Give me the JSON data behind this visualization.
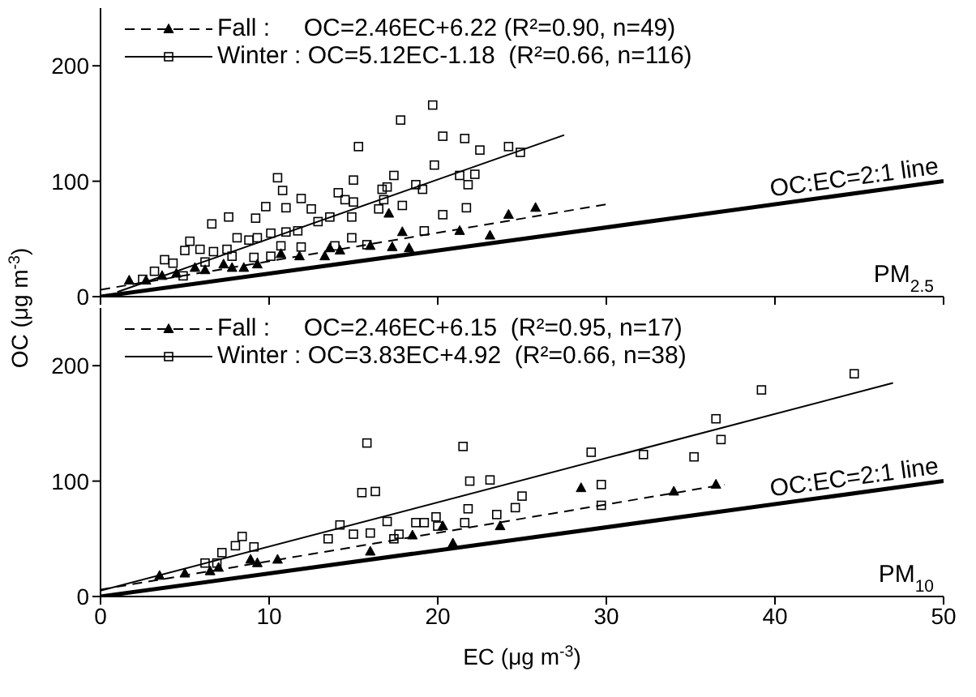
{
  "chart_data": [
    {
      "type": "scatter",
      "ylabel": "OC (μg m$^{-3}$)",
      "xlim": [
        0,
        50
      ],
      "xticks": [
        0,
        10,
        20,
        30,
        40,
        50
      ],
      "ylim": [
        0,
        250
      ],
      "yticks": [
        0,
        100,
        200
      ],
      "tick_labels": "y",
      "legend": "top left",
      "annotations": [
        "PM$_{2.5}$"
      ],
      "series": [
        {
          "type": "scatter",
          "name": "Fall :     OC=2.46EC+6.22 (R²=0.90, n=49)",
          "color": "#000000",
          "marker": "triangle",
          "x": [
            1.7,
            2.7,
            3.65,
            4.5,
            5.6,
            6.2,
            7.3,
            7.8,
            8.5,
            9.3,
            10.7,
            11.8,
            13.3,
            13.6,
            14.2,
            16.0,
            17.1,
            17.3,
            17.9,
            18.3,
            21.3,
            23.1,
            24.2,
            25.8
          ],
          "values": [
            14,
            14,
            18,
            20,
            25,
            23,
            28,
            25,
            25,
            28,
            37,
            35,
            35,
            42,
            40,
            44,
            72,
            43,
            56,
            42,
            57,
            53,
            71,
            77
          ]
        },
        {
          "type": "line",
          "color": "#000000",
          "line_style": "dashed",
          "marker": "none",
          "x": [
            0,
            30
          ],
          "values": [
            6,
            80
          ]
        },
        {
          "type": "scatter",
          "name": "Winter : OC=5.12EC-1.18  (R²=0.66, n=116)",
          "color": "#000000",
          "marker": "square",
          "x": [
            19.7,
            17.8,
            15.3,
            20.3,
            21.6,
            22.5,
            24.2,
            24.9,
            19.8,
            21.3,
            22.2,
            21.8,
            17.4,
            18.7,
            19.1,
            16.7,
            17.0,
            15.0,
            16.8,
            16.5,
            17.9,
            21.7,
            20.3,
            19.2,
            10.5,
            10.8,
            9.8,
            11.0,
            11.9,
            12.5,
            14.1,
            14.5,
            15.0,
            14.9,
            13.6,
            12.9,
            7.6,
            6.6,
            9.2,
            5.3,
            5.0,
            5.9,
            6.7,
            7.5,
            8.1,
            8.8,
            9.3,
            10.1,
            11.0,
            11.7,
            10.7,
            11.9,
            3.8,
            4.3,
            3.2,
            6.2,
            7.8,
            9.1,
            10.1,
            13.9,
            14.9,
            15.8,
            4.9,
            2.5
          ],
          "values": [
            166,
            153,
            130,
            139,
            137,
            127,
            130,
            125,
            114,
            105,
            106,
            97,
            105,
            97,
            93,
            93,
            95,
            101,
            84,
            76,
            79,
            77,
            71,
            57,
            103,
            92,
            78,
            77,
            85,
            76,
            90,
            84,
            82,
            69,
            69,
            65,
            69,
            63,
            68,
            48,
            40,
            41,
            39,
            41,
            51,
            49,
            51,
            55,
            56,
            57,
            44,
            43,
            32,
            29,
            22,
            30,
            35,
            34,
            35,
            44,
            51,
            45,
            18,
            15
          ]
        },
        {
          "type": "line",
          "color": "#000000",
          "line_style": "solid",
          "marker": "none",
          "x": [
            1,
            27.5
          ],
          "values": [
            4,
            140
          ]
        },
        {
          "type": "line",
          "name": "OC:EC=2:1 line",
          "color": "#000000",
          "line_style": "solid",
          "marker": "none",
          "x": [
            0,
            50
          ],
          "values": [
            0,
            100
          ]
        }
      ]
    },
    {
      "type": "scatter",
      "xlabel": "EC (μg m$^{-3}$)",
      "xlim": [
        0,
        50
      ],
      "xticks": [
        0,
        10,
        20,
        30,
        40,
        50
      ],
      "ylim": [
        0,
        250
      ],
      "yticks": [
        0,
        100,
        200
      ],
      "legend": "top left",
      "annotations": [
        "PM$_{10}$"
      ],
      "series": [
        {
          "type": "scatter",
          "name": "Fall :     OC=2.46EC+6.15  (R²=0.95, n=17)",
          "color": "#000000",
          "marker": "triangle",
          "x": [
            3.5,
            5.0,
            6.5,
            7.0,
            8.9,
            9.3,
            10.5,
            16.0,
            18.5,
            20.3,
            20.9,
            23.7,
            28.5,
            34.0,
            36.5
          ],
          "values": [
            18,
            20,
            22,
            25,
            32,
            29,
            32,
            39,
            53,
            61,
            46,
            61,
            94,
            91,
            97
          ]
        },
        {
          "type": "line",
          "color": "#000000",
          "line_style": "dashed",
          "marker": "none",
          "x": [
            0,
            37
          ],
          "values": [
            6,
            97
          ]
        },
        {
          "type": "scatter",
          "name": "Winter : OC=3.83EC+4.92  (R²=0.66, n=38)",
          "color": "#000000",
          "marker": "square",
          "x": [
            15.8,
            21.5,
            15.5,
            16.3,
            21.9,
            23.1,
            8.4,
            8.0,
            7.2,
            9.1,
            6.2,
            6.9,
            14.2,
            13.5,
            15.0,
            16.0,
            17.0,
            17.7,
            17.4,
            18.7,
            19.2,
            19.9,
            20.0,
            21.8,
            21.6,
            23.5,
            24.6,
            25.0,
            44.7,
            39.2,
            36.5,
            36.8,
            29.1,
            32.2,
            35.2,
            29.7,
            29.7
          ],
          "values": [
            133,
            130,
            90,
            91,
            100,
            101,
            52,
            44,
            38,
            43,
            29,
            29,
            62,
            50,
            54,
            55,
            65,
            54,
            50,
            64,
            64,
            69,
            61,
            76,
            64,
            71,
            77,
            87,
            193,
            179,
            154,
            136,
            125,
            123,
            121,
            97,
            79
          ]
        },
        {
          "type": "line",
          "color": "#000000",
          "line_style": "solid",
          "marker": "none",
          "x": [
            0,
            47
          ],
          "values": [
            5,
            185
          ]
        },
        {
          "type": "line",
          "name": "OC:EC=2:1 line",
          "color": "#000000",
          "line_style": "solid",
          "marker": "none",
          "x": [
            0,
            50
          ],
          "values": [
            0,
            100
          ]
        }
      ]
    }
  ]
}
